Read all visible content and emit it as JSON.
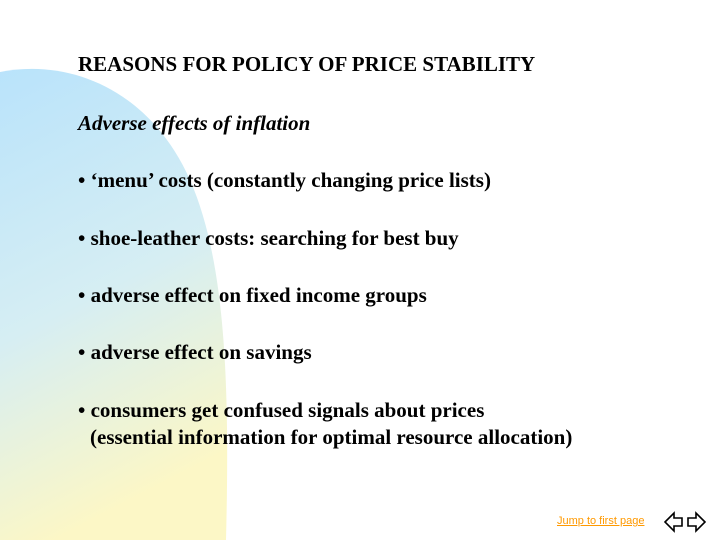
{
  "slide": {
    "title": "REASONS FOR POLICY OF PRICE STABILITY",
    "subtitle": "Adverse effects of inflation",
    "bullets": [
      {
        "text": "• ‘menu’ costs (constantly changing price lists)"
      },
      {
        "text": "• shoe-leather costs: searching for best buy"
      },
      {
        "text": "• adverse effect on fixed income groups"
      },
      {
        "text": "• adverse effect on savings"
      },
      {
        "text": "• consumers get confused signals about prices",
        "continuation": "(essential information for optimal resource allocation)"
      }
    ]
  },
  "footer": {
    "jump_link": "Jump to first page",
    "prev_icon": "arrow-left-icon",
    "next_icon": "arrow-right-icon"
  },
  "colors": {
    "background": "#ffffff",
    "swoosh_top": "#b9e3fb",
    "swoosh_bottom": "#fcf7c6",
    "link": "#ff9900",
    "text": "#000000"
  }
}
